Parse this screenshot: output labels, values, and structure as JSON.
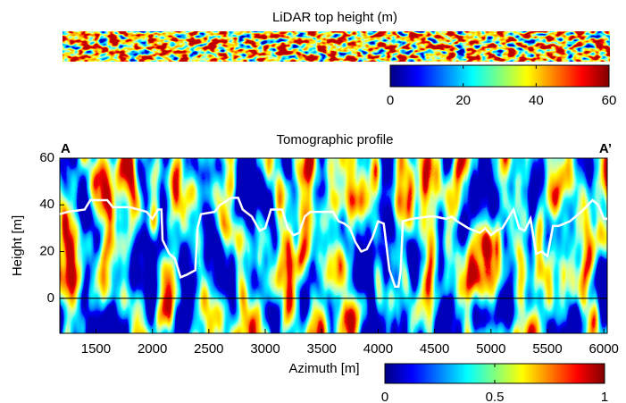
{
  "chart_data": [
    {
      "type": "heatmap",
      "title": "LiDAR top height (m)",
      "colorbar": {
        "clim": [
          0,
          60
        ],
        "ticks": [
          0,
          20,
          40,
          60
        ]
      }
    },
    {
      "type": "line",
      "title": "Tomographic profile",
      "annotations": [
        "A",
        "A’"
      ],
      "annotation_color": "#e81010",
      "xlabel": "Azimuth [m]",
      "ylabel": "Height [m]",
      "xlim": [
        1180,
        6030
      ],
      "ylim": [
        -15,
        60
      ],
      "xticks": [
        1500,
        2000,
        2500,
        3000,
        3500,
        4000,
        4500,
        5000,
        5500,
        6000
      ],
      "yticks": [
        0,
        20,
        40,
        60
      ],
      "reference_line": 0,
      "color": "#ffffff",
      "x": [
        1180,
        1250,
        1400,
        1450,
        1600,
        1650,
        1800,
        1950,
        2000,
        2050,
        2080,
        2090,
        2150,
        2200,
        2250,
        2300,
        2380,
        2400,
        2430,
        2550,
        2600,
        2700,
        2760,
        2800,
        2880,
        2950,
        3000,
        3050,
        3150,
        3200,
        3250,
        3300,
        3350,
        3400,
        3500,
        3600,
        3650,
        3700,
        3750,
        3800,
        3850,
        3900,
        3950,
        4000,
        4050,
        4100,
        4150,
        4180,
        4200,
        4220,
        4300,
        4450,
        4500,
        4600,
        4650,
        4700,
        4800,
        4900,
        4950,
        5000,
        5050,
        5100,
        5150,
        5200,
        5250,
        5300,
        5350,
        5400,
        5450,
        5500,
        5550,
        5600,
        5700,
        5800,
        5900,
        5950,
        6000,
        6030
      ],
      "values": [
        36,
        37,
        38,
        42,
        42,
        39,
        39,
        37,
        34,
        38,
        38,
        25,
        19,
        17,
        9,
        10,
        12,
        30,
        36,
        37,
        40,
        43,
        43,
        38,
        35,
        29,
        30,
        38,
        38,
        30,
        27,
        28,
        35,
        37,
        37,
        37,
        33,
        32,
        30,
        24,
        20,
        21,
        26,
        33,
        32,
        12,
        5,
        5,
        12,
        33,
        34,
        35,
        35,
        34,
        35,
        33,
        30,
        28,
        30,
        27,
        29,
        30,
        34,
        38,
        30,
        29,
        34,
        19,
        20,
        18,
        31,
        31,
        33,
        37,
        42,
        40,
        34,
        34
      ],
      "colorbar": {
        "clim": [
          0,
          1
        ],
        "ticks": [
          0,
          0.5,
          1
        ]
      }
    }
  ]
}
